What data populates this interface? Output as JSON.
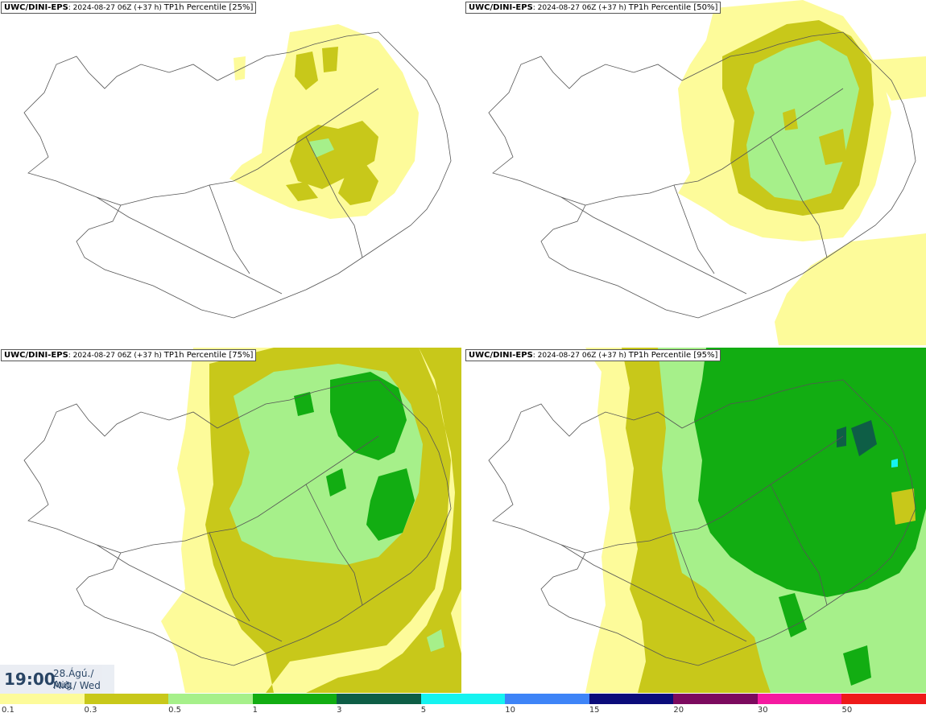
{
  "panels": [
    {
      "source": "UWC/DINI-EPS",
      "run": "2024-08-27 06Z (+37 h)",
      "variable": "TP1h Percentile [25%]"
    },
    {
      "source": "UWC/DINI-EPS",
      "run": "2024-08-27 06Z (+37 h)",
      "variable": "TP1h Percentile [50%]"
    },
    {
      "source": "UWC/DINI-EPS",
      "run": "2024-08-27 06Z (+37 h)",
      "variable": "TP1h Percentile [75%]"
    },
    {
      "source": "UWC/DINI-EPS",
      "run": "2024-08-27 06Z (+37 h)",
      "variable": "TP1h Percentile [95%]"
    }
  ],
  "valid_time": {
    "time": "19:00",
    "date": "28.Ágú./ Aug",
    "weekday": "Mið./ Wed"
  },
  "legend": {
    "colors": [
      "#fdfb9a",
      "#c8c81a",
      "#a6f08a",
      "#12ad12",
      "#0e5e46",
      "#15f3f0",
      "#3e84f7",
      "#0b0c7a",
      "#7c0a5e",
      "#f51aa0",
      "#ee1a1a"
    ],
    "labels": [
      "0.1",
      "0.3",
      "0.5",
      "1",
      "3",
      "5",
      "10",
      "15",
      "20",
      "30",
      "50"
    ]
  }
}
